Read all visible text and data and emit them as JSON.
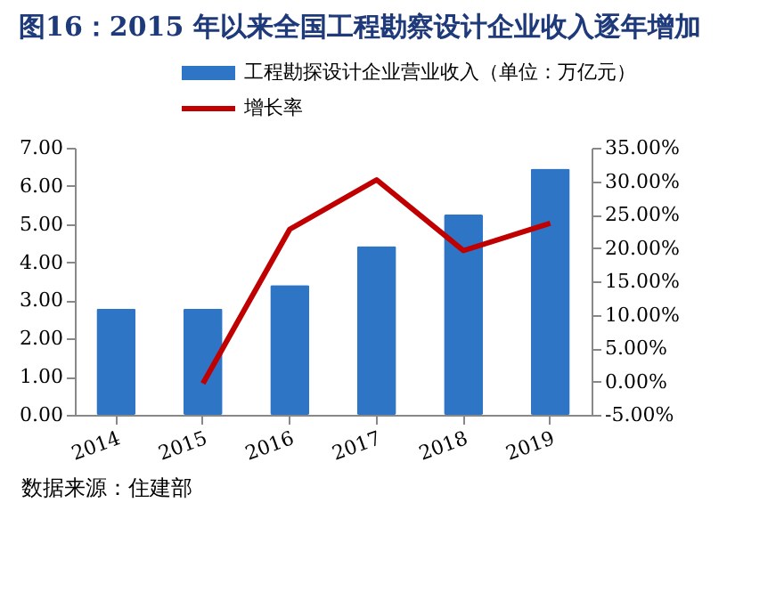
{
  "chart_data": {
    "type": "bar",
    "title": "图16：2015 年以来全国工程勘察设计企业收入逐年增加",
    "categories": [
      "2014",
      "2015",
      "2016",
      "2017",
      "2018",
      "2019"
    ],
    "series": [
      {
        "name": "工程勘探设计企业营业收入（单位：万亿元）",
        "color": "#2e75c6",
        "values": [
          2.78,
          2.78,
          3.4,
          4.42,
          5.25,
          6.45
        ]
      },
      {
        "name": "增长率",
        "type": "line",
        "axis": "y2",
        "color": "#c00000",
        "values": [
          null,
          -0.3,
          22.8,
          30.2,
          19.6,
          23.7
        ]
      }
    ],
    "ylim": [
      0,
      7
    ],
    "yticks": [
      {
        "value": 0,
        "label": "0.00"
      },
      {
        "value": 1,
        "label": "1.00"
      },
      {
        "value": 2,
        "label": "2.00"
      },
      {
        "value": 3,
        "label": "3.00"
      },
      {
        "value": 4,
        "label": "4.00"
      },
      {
        "value": 5,
        "label": "5.00"
      },
      {
        "value": 6,
        "label": "6.00"
      },
      {
        "value": 7,
        "label": "7.00"
      }
    ],
    "y2lim": [
      -5,
      35
    ],
    "y2ticks": [
      {
        "value": -5,
        "label": "-5.00%"
      },
      {
        "value": 0,
        "label": "0.00%"
      },
      {
        "value": 5,
        "label": "5.00%"
      },
      {
        "value": 10,
        "label": "10.00%"
      },
      {
        "value": 15,
        "label": "15.00%"
      },
      {
        "value": 20,
        "label": "20.00%"
      },
      {
        "value": 25,
        "label": "25.00%"
      },
      {
        "value": 30,
        "label": "30.00%"
      },
      {
        "value": 35,
        "label": "35.00%"
      }
    ],
    "grid": false,
    "legend": "top",
    "marker": "none",
    "annotations": [
      "数据来源：住建部"
    ]
  }
}
